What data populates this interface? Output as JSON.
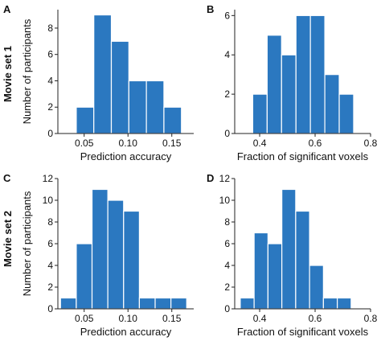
{
  "row_labels": [
    "Movie set 1",
    "Movie set 2"
  ],
  "colors": {
    "bar": "#2b78c0",
    "axis": "#222222",
    "text": "#111111"
  },
  "chart_data": [
    {
      "panel": "A",
      "type": "bar",
      "histogram": true,
      "title": "",
      "xlabel": "Prediction accuracy",
      "ylabel": "Number of participants",
      "xlim": [
        0.02,
        0.175
      ],
      "ylim": [
        0,
        9.4
      ],
      "xticks": [
        0.05,
        0.1,
        0.15
      ],
      "xtick_labels": [
        "0.05",
        "0.10",
        "0.15"
      ],
      "yticks": [
        0,
        2,
        4,
        6,
        8
      ],
      "ytick_labels": [
        "0",
        "2",
        "4",
        "6",
        "8"
      ],
      "bins": [
        {
          "x0": 0.041,
          "x1": 0.061,
          "count": 2
        },
        {
          "x0": 0.061,
          "x1": 0.081,
          "count": 9
        },
        {
          "x0": 0.081,
          "x1": 0.101,
          "count": 7
        },
        {
          "x0": 0.101,
          "x1": 0.121,
          "count": 4
        },
        {
          "x0": 0.121,
          "x1": 0.141,
          "count": 4
        },
        {
          "x0": 0.141,
          "x1": 0.161,
          "count": 2
        }
      ]
    },
    {
      "panel": "B",
      "type": "bar",
      "histogram": true,
      "title": "",
      "xlabel": "Fraction of significant voxels",
      "ylabel": "",
      "xlim": [
        0.31,
        0.8
      ],
      "ylim": [
        0,
        6.3
      ],
      "xticks": [
        0.4,
        0.6,
        0.8
      ],
      "xtick_labels": [
        "0.4",
        "0.6",
        "0.8"
      ],
      "yticks": [
        0,
        2,
        4,
        6
      ],
      "ytick_labels": [
        "0",
        "2",
        "4",
        "6"
      ],
      "bins": [
        {
          "x0": 0.375,
          "x1": 0.427,
          "count": 2
        },
        {
          "x0": 0.427,
          "x1": 0.479,
          "count": 5
        },
        {
          "x0": 0.479,
          "x1": 0.531,
          "count": 4
        },
        {
          "x0": 0.531,
          "x1": 0.583,
          "count": 6
        },
        {
          "x0": 0.583,
          "x1": 0.635,
          "count": 6
        },
        {
          "x0": 0.635,
          "x1": 0.687,
          "count": 3
        },
        {
          "x0": 0.687,
          "x1": 0.739,
          "count": 2
        }
      ]
    },
    {
      "panel": "C",
      "type": "bar",
      "histogram": true,
      "title": "",
      "xlabel": "Prediction accuracy",
      "ylabel": "Number of participants",
      "xlim": [
        0.02,
        0.175
      ],
      "ylim": [
        0,
        12
      ],
      "xticks": [
        0.05,
        0.1,
        0.15
      ],
      "xtick_labels": [
        "0.05",
        "0.10",
        "0.15"
      ],
      "yticks": [
        0,
        2,
        4,
        6,
        8,
        10,
        12
      ],
      "ytick_labels": [
        "0",
        "2",
        "4",
        "6",
        "8",
        "10",
        "12"
      ],
      "bins": [
        {
          "x0": 0.023,
          "x1": 0.041,
          "count": 1
        },
        {
          "x0": 0.041,
          "x1": 0.059,
          "count": 6
        },
        {
          "x0": 0.059,
          "x1": 0.077,
          "count": 11
        },
        {
          "x0": 0.077,
          "x1": 0.095,
          "count": 10
        },
        {
          "x0": 0.095,
          "x1": 0.113,
          "count": 9
        },
        {
          "x0": 0.113,
          "x1": 0.131,
          "count": 1
        },
        {
          "x0": 0.131,
          "x1": 0.149,
          "count": 1
        },
        {
          "x0": 0.149,
          "x1": 0.167,
          "count": 1
        }
      ]
    },
    {
      "panel": "D",
      "type": "bar",
      "histogram": true,
      "title": "",
      "xlabel": "Fraction of significant voxels",
      "ylabel": "",
      "xlim": [
        0.31,
        0.8
      ],
      "ylim": [
        0,
        12
      ],
      "xticks": [
        0.4,
        0.6,
        0.8
      ],
      "xtick_labels": [
        "0.4",
        "0.6",
        "0.8"
      ],
      "yticks": [
        0,
        2,
        4,
        6,
        8,
        10,
        12
      ],
      "ytick_labels": [
        "0",
        "2",
        "4",
        "6",
        "8",
        "10",
        "12"
      ],
      "bins": [
        {
          "x0": 0.33,
          "x1": 0.38,
          "count": 1
        },
        {
          "x0": 0.38,
          "x1": 0.43,
          "count": 7
        },
        {
          "x0": 0.43,
          "x1": 0.48,
          "count": 6
        },
        {
          "x0": 0.48,
          "x1": 0.53,
          "count": 11
        },
        {
          "x0": 0.53,
          "x1": 0.58,
          "count": 9
        },
        {
          "x0": 0.58,
          "x1": 0.63,
          "count": 4
        },
        {
          "x0": 0.63,
          "x1": 0.68,
          "count": 1
        },
        {
          "x0": 0.68,
          "x1": 0.73,
          "count": 1
        }
      ]
    }
  ]
}
